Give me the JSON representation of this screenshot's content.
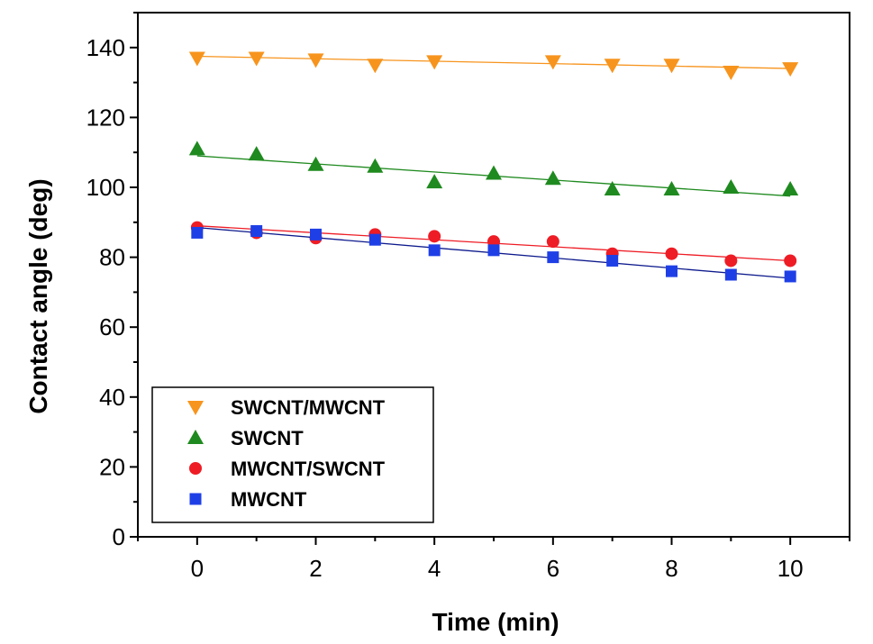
{
  "chart_data": {
    "type": "scatter",
    "xlabel": "Time (min)",
    "ylabel": "Contact angle (deg)",
    "xlim": [
      -1,
      11
    ],
    "ylim": [
      0,
      150
    ],
    "xticks": [
      0,
      2,
      4,
      6,
      8,
      10
    ],
    "yticks": [
      0,
      20,
      40,
      60,
      80,
      100,
      120,
      140
    ],
    "x_minor_step": 1,
    "y_minor_step": 10,
    "grid": false,
    "legend_position": "bottom-left",
    "series": [
      {
        "name": "SWCNT/MWCNT",
        "marker": "triangle-down",
        "color": "#f7941d",
        "line_color": "#f7941d",
        "x": [
          0,
          1,
          2,
          3,
          4,
          6,
          7,
          8,
          9,
          10
        ],
        "y": [
          137,
          137,
          136.5,
          135,
          136,
          136,
          135,
          135,
          133,
          134
        ],
        "fit": [
          137.5,
          134
        ]
      },
      {
        "name": "SWCNT",
        "marker": "triangle-up",
        "color": "#1f8a1f",
        "line_color": "#1f8a1f",
        "x": [
          0,
          1,
          2,
          3,
          4,
          5,
          6,
          7,
          8,
          9,
          10
        ],
        "y": [
          111,
          109.5,
          106.5,
          106,
          101.5,
          104,
          102.5,
          99.5,
          99.5,
          100,
          99.5
        ],
        "fit": [
          109,
          97.5
        ]
      },
      {
        "name": "MWCNT/SWCNT",
        "marker": "circle",
        "color": "#ee1c25",
        "line_color": "#ee1c25",
        "x": [
          0,
          1,
          2,
          3,
          4,
          5,
          6,
          7,
          8,
          9,
          10
        ],
        "y": [
          88.5,
          87,
          85.5,
          86.5,
          86,
          84.5,
          84.5,
          81,
          81,
          79,
          79
        ],
        "fit": [
          89,
          79
        ]
      },
      {
        "name": "MWCNT",
        "marker": "square",
        "color": "#1f3fe6",
        "line_color": "#0d1a8c",
        "x": [
          0,
          1,
          2,
          3,
          4,
          5,
          6,
          7,
          8,
          9,
          10
        ],
        "y": [
          87,
          87.5,
          86.5,
          85,
          82,
          82,
          80,
          79,
          76,
          75,
          74.5
        ],
        "fit": [
          88.5,
          74
        ]
      }
    ]
  }
}
